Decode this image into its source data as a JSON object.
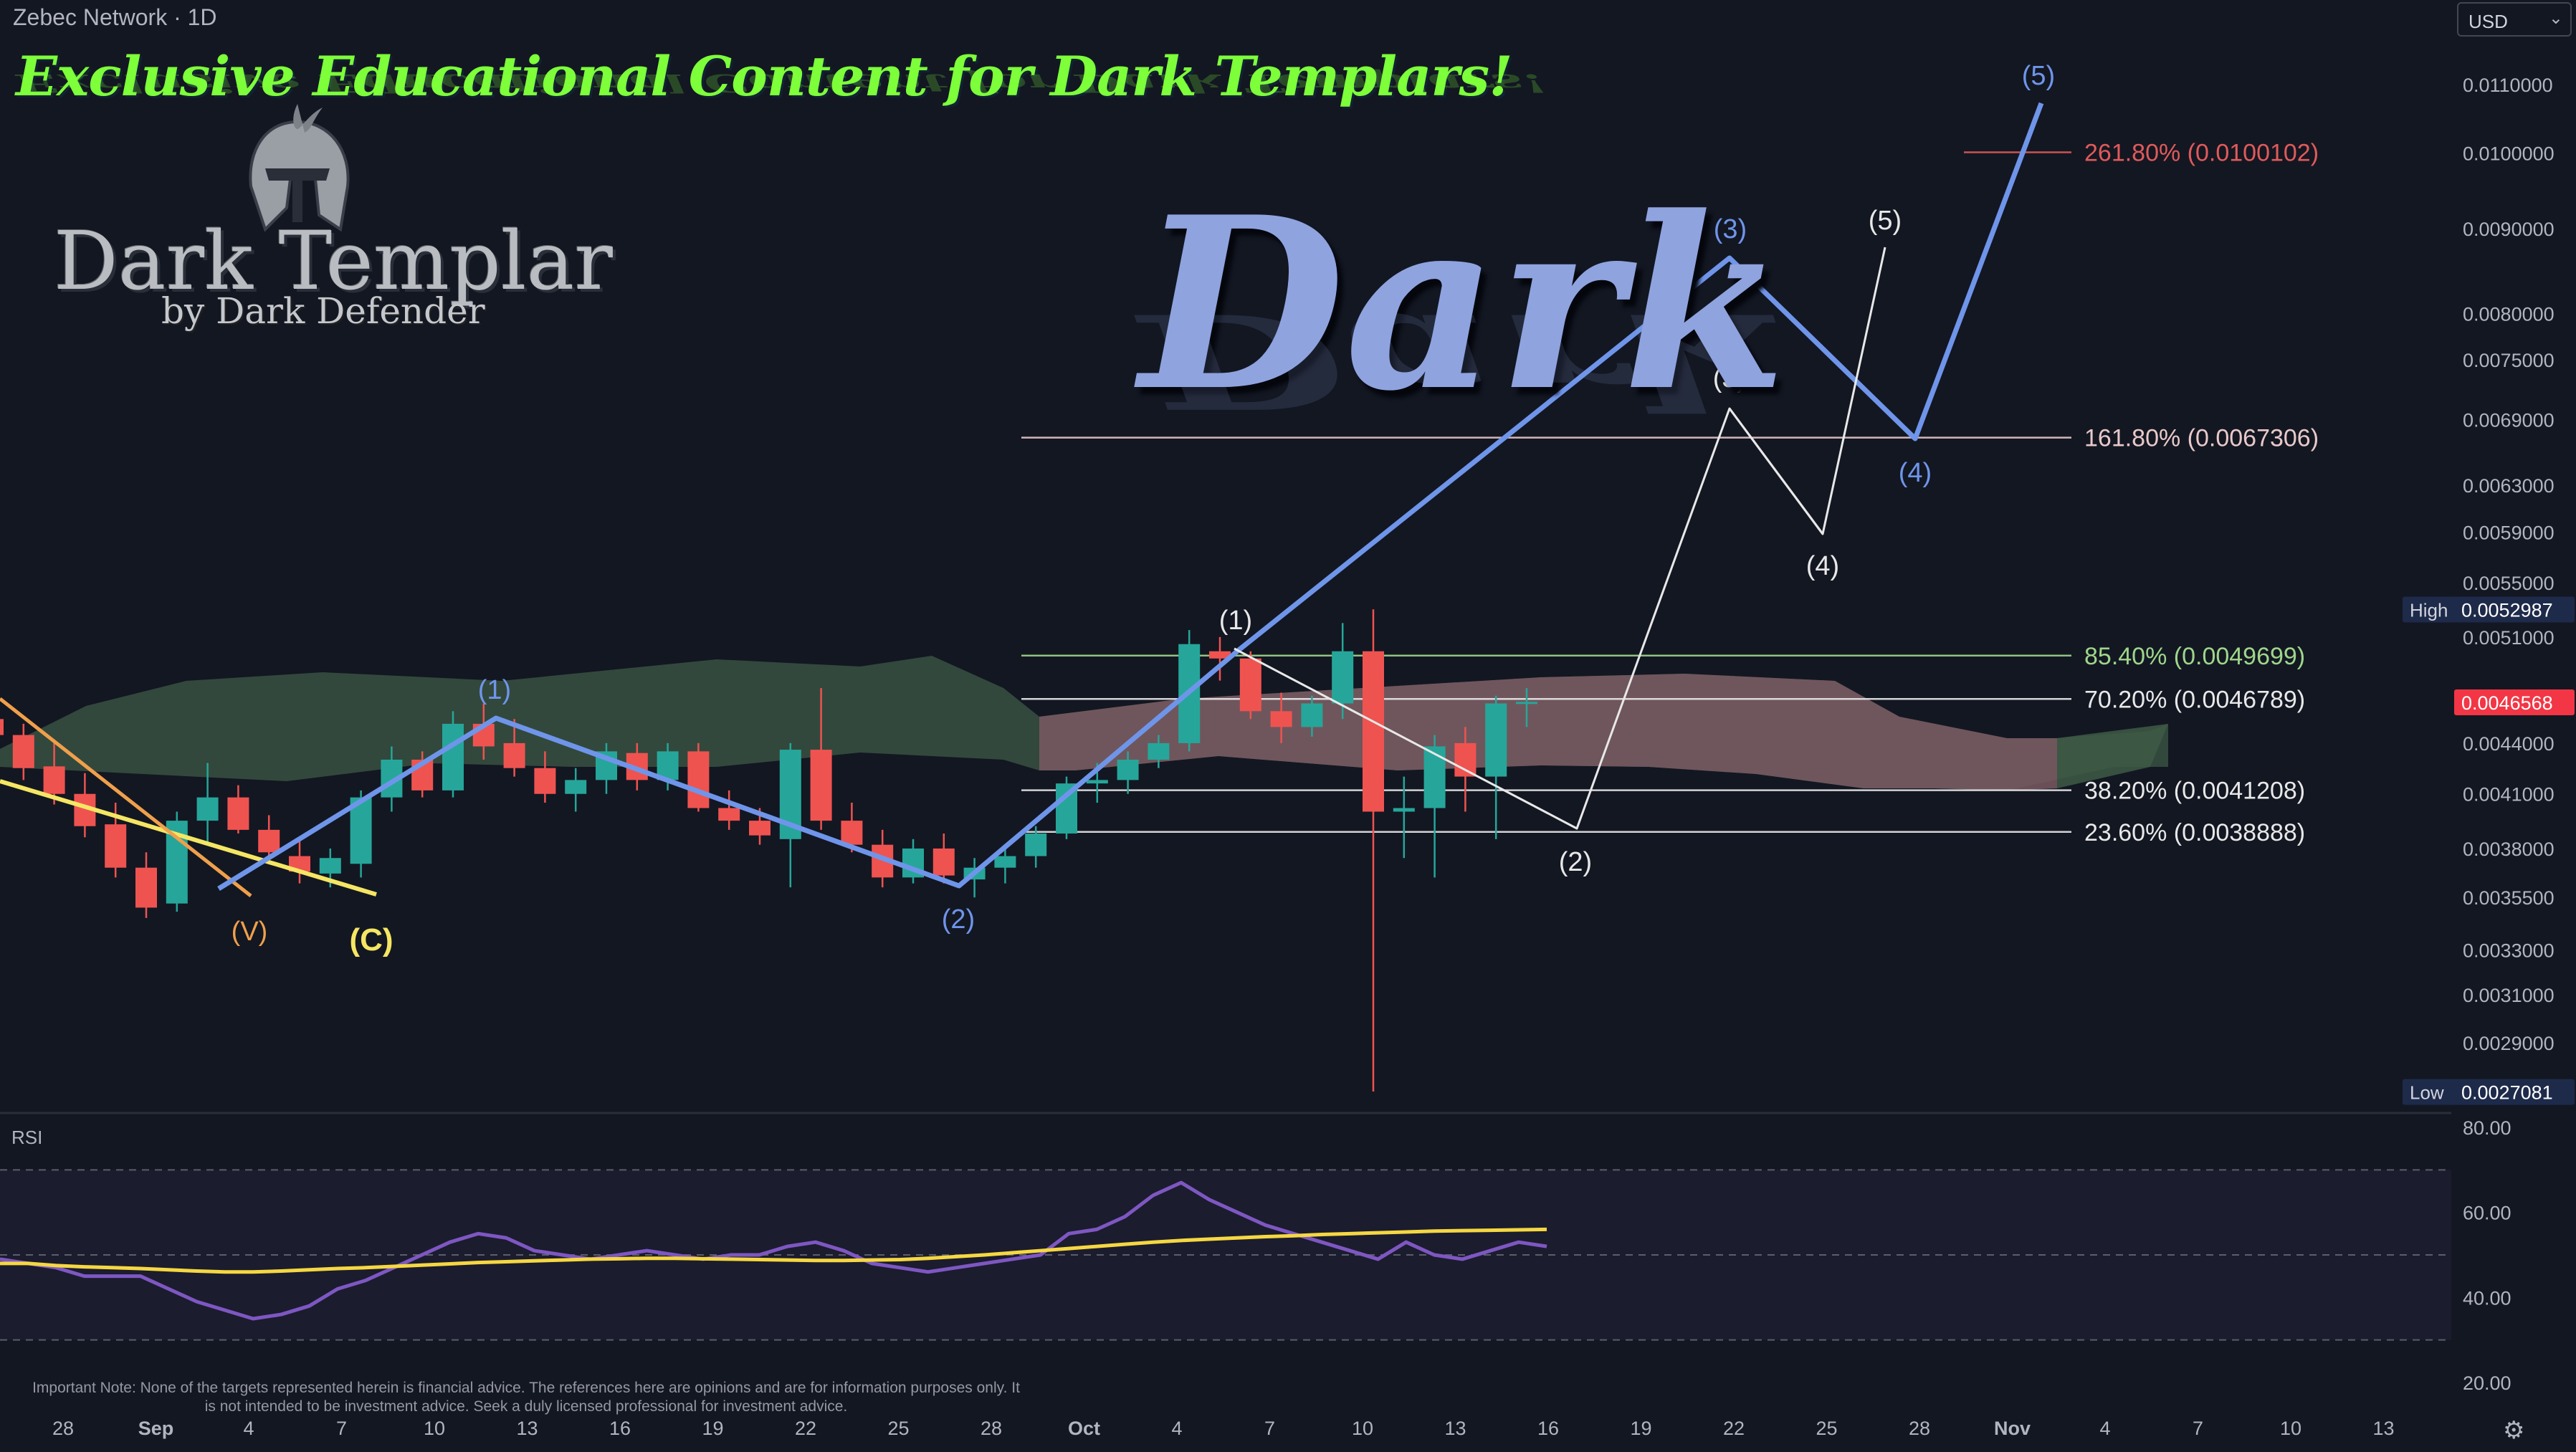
{
  "header": {
    "symbol_title": "Zebec Network · 1D",
    "currency": "USD"
  },
  "overlay": {
    "promo_text": "Exclusive Educational Content for Dark Templars!",
    "brand_name": "Dark Templar",
    "brand_sub": "by Dark Defender",
    "watermark": "Dark",
    "disclaimer": "Important Note: None of the targets represented herein is financial advice. The references here are opinions and are for information purposes only. It is not intended to be investment advice. Seek a duly licensed professional for investment advice."
  },
  "icons": {
    "settings": "gear-icon",
    "helmet": "helmet-icon",
    "chevron": "chevron-down-icon"
  },
  "colors": {
    "background": "#131722",
    "up": "#26a69a",
    "down": "#ef5350",
    "wave_blue": "#6f95ea",
    "wave_white": "#e8e8e8",
    "wave_yellow": "#f5e663",
    "rsi_line": "#7e57c2",
    "rsi_ma": "#f5d742",
    "cloud_green": "#3e5a45",
    "cloud_red": "#7a5962"
  },
  "chart_data": [
    {
      "type": "candlestick",
      "scale": "log",
      "ylim": [
        0.0027,
        0.0115
      ],
      "x_tick_labels": [
        "28",
        "Sep",
        "4",
        "7",
        "10",
        "13",
        "16",
        "19",
        "22",
        "25",
        "28",
        "Oct",
        "4",
        "7",
        "10",
        "13",
        "16",
        "19",
        "22",
        "25",
        "28",
        "Nov",
        "4",
        "7",
        "10",
        "13"
      ],
      "y_tick_labels": [
        "0.0110000",
        "0.0100000",
        "0.0090000",
        "0.0080000",
        "0.0075000",
        "0.0069000",
        "0.0063000",
        "0.0059000",
        "0.0055000",
        "0.0051000",
        "0.0044000",
        "0.0041000",
        "0.0038000",
        "0.0035500",
        "0.0033000",
        "0.0031000",
        "0.0029000"
      ],
      "price_badges": [
        {
          "label": "High",
          "value": "0.0052987"
        },
        {
          "label": "",
          "value": "0.0046568"
        },
        {
          "label": "Low",
          "value": "0.0027081"
        }
      ],
      "candles": [
        {
          "o": 0.00455,
          "h": 0.00465,
          "l": 0.0044,
          "c": 0.00445
        },
        {
          "o": 0.00445,
          "h": 0.00452,
          "l": 0.00418,
          "c": 0.00425
        },
        {
          "o": 0.00426,
          "h": 0.0044,
          "l": 0.00404,
          "c": 0.0041
        },
        {
          "o": 0.0041,
          "h": 0.00422,
          "l": 0.00386,
          "c": 0.00392
        },
        {
          "o": 0.00393,
          "h": 0.00405,
          "l": 0.00365,
          "c": 0.0037
        },
        {
          "o": 0.0037,
          "h": 0.00378,
          "l": 0.00345,
          "c": 0.0035
        },
        {
          "o": 0.00352,
          "h": 0.004,
          "l": 0.00348,
          "c": 0.00395
        },
        {
          "o": 0.00395,
          "h": 0.00428,
          "l": 0.00382,
          "c": 0.00408
        },
        {
          "o": 0.00408,
          "h": 0.00415,
          "l": 0.00388,
          "c": 0.0039
        },
        {
          "o": 0.0039,
          "h": 0.00398,
          "l": 0.00372,
          "c": 0.00378
        },
        {
          "o": 0.00376,
          "h": 0.00385,
          "l": 0.00362,
          "c": 0.00368
        },
        {
          "o": 0.00367,
          "h": 0.0038,
          "l": 0.0036,
          "c": 0.00375
        },
        {
          "o": 0.00372,
          "h": 0.00412,
          "l": 0.00365,
          "c": 0.00408
        },
        {
          "o": 0.00408,
          "h": 0.00438,
          "l": 0.004,
          "c": 0.0043
        },
        {
          "o": 0.0043,
          "h": 0.00435,
          "l": 0.00408,
          "c": 0.00412
        },
        {
          "o": 0.00412,
          "h": 0.0046,
          "l": 0.00408,
          "c": 0.00452
        },
        {
          "o": 0.00452,
          "h": 0.00465,
          "l": 0.0043,
          "c": 0.00438
        },
        {
          "o": 0.0044,
          "h": 0.00455,
          "l": 0.0042,
          "c": 0.00425
        },
        {
          "o": 0.00425,
          "h": 0.00435,
          "l": 0.00405,
          "c": 0.0041
        },
        {
          "o": 0.0041,
          "h": 0.00425,
          "l": 0.004,
          "c": 0.00418
        },
        {
          "o": 0.00418,
          "h": 0.0044,
          "l": 0.0041,
          "c": 0.00435
        },
        {
          "o": 0.00434,
          "h": 0.0044,
          "l": 0.00412,
          "c": 0.00418
        },
        {
          "o": 0.00418,
          "h": 0.0044,
          "l": 0.00412,
          "c": 0.00435
        },
        {
          "o": 0.00435,
          "h": 0.0044,
          "l": 0.004,
          "c": 0.00402
        },
        {
          "o": 0.00402,
          "h": 0.00412,
          "l": 0.0039,
          "c": 0.00395
        },
        {
          "o": 0.00395,
          "h": 0.00402,
          "l": 0.00382,
          "c": 0.00387
        },
        {
          "o": 0.00385,
          "h": 0.0044,
          "l": 0.0036,
          "c": 0.00436
        },
        {
          "o": 0.00436,
          "h": 0.00475,
          "l": 0.0039,
          "c": 0.00395
        },
        {
          "o": 0.00395,
          "h": 0.00405,
          "l": 0.00378,
          "c": 0.00382
        },
        {
          "o": 0.00382,
          "h": 0.0039,
          "l": 0.0036,
          "c": 0.00365
        },
        {
          "o": 0.00365,
          "h": 0.00385,
          "l": 0.00362,
          "c": 0.0038
        },
        {
          "o": 0.0038,
          "h": 0.00388,
          "l": 0.00362,
          "c": 0.00366
        },
        {
          "o": 0.00364,
          "h": 0.00375,
          "l": 0.00355,
          "c": 0.0037
        },
        {
          "o": 0.0037,
          "h": 0.0038,
          "l": 0.00362,
          "c": 0.00376
        },
        {
          "o": 0.00376,
          "h": 0.00392,
          "l": 0.0037,
          "c": 0.00388
        },
        {
          "o": 0.00388,
          "h": 0.0042,
          "l": 0.00385,
          "c": 0.00416
        },
        {
          "o": 0.00416,
          "h": 0.00428,
          "l": 0.00405,
          "c": 0.00418
        },
        {
          "o": 0.00418,
          "h": 0.00435,
          "l": 0.0041,
          "c": 0.0043
        },
        {
          "o": 0.0043,
          "h": 0.00445,
          "l": 0.00425,
          "c": 0.0044
        },
        {
          "o": 0.0044,
          "h": 0.00515,
          "l": 0.00435,
          "c": 0.00505
        },
        {
          "o": 0.005,
          "h": 0.0051,
          "l": 0.0048,
          "c": 0.00495
        },
        {
          "o": 0.00495,
          "h": 0.005,
          "l": 0.00455,
          "c": 0.0046
        },
        {
          "o": 0.0046,
          "h": 0.00472,
          "l": 0.0044,
          "c": 0.0045
        },
        {
          "o": 0.0045,
          "h": 0.0047,
          "l": 0.00444,
          "c": 0.00465
        },
        {
          "o": 0.00465,
          "h": 0.0052,
          "l": 0.00455,
          "c": 0.005
        },
        {
          "o": 0.005,
          "h": 0.0053,
          "l": 0.00271,
          "c": 0.004
        },
        {
          "o": 0.004,
          "h": 0.0042,
          "l": 0.00375,
          "c": 0.00402
        },
        {
          "o": 0.00402,
          "h": 0.00445,
          "l": 0.00365,
          "c": 0.00438
        },
        {
          "o": 0.0044,
          "h": 0.0045,
          "l": 0.004,
          "c": 0.0042
        },
        {
          "o": 0.0042,
          "h": 0.0047,
          "l": 0.00385,
          "c": 0.00465
        },
        {
          "o": 0.00465,
          "h": 0.00475,
          "l": 0.0045,
          "c": 0.00466
        }
      ],
      "fib_levels": [
        {
          "label": "261.80% (0.0100102)",
          "price": 0.0100102,
          "color": "#e05a5a"
        },
        {
          "label": "161.80% (0.0067306)",
          "price": 0.0067306,
          "color": "#e8c9c9"
        },
        {
          "label": "85.40% (0.0049699)",
          "price": 0.0049699,
          "color": "#9fd68a"
        },
        {
          "label": "70.20% (0.0046789)",
          "price": 0.0046789,
          "color": "#e8e8e8"
        },
        {
          "label": "38.20% (0.0041208)",
          "price": 0.0041208,
          "color": "#e8e8e8"
        },
        {
          "label": "23.60% (0.0038888)",
          "price": 0.0038888,
          "color": "#e8e8e8"
        }
      ],
      "waves": {
        "blue": [
          "(1)",
          "(2)",
          "(3)",
          "(4)",
          "(5)"
        ],
        "white": [
          "(1)",
          "(2)",
          "(3)",
          "(4)",
          "(5)"
        ],
        "white_alt": [
          "(3)",
          "(4)"
        ],
        "orange": [
          "(V)"
        ],
        "yellow": [
          "(C)"
        ]
      }
    },
    {
      "type": "line",
      "title": "RSI",
      "ylim": [
        20,
        80
      ],
      "y_tick_labels": [
        "80.00",
        "60.00",
        "40.00",
        "20.00"
      ],
      "series": [
        {
          "values": [
            49,
            48,
            47,
            45,
            45,
            45,
            42,
            39,
            37,
            35,
            36,
            38,
            42,
            44,
            47,
            50,
            53,
            55,
            54,
            51,
            50,
            49,
            50,
            51,
            50,
            49,
            50,
            50,
            52,
            53,
            51,
            48,
            47,
            46,
            47,
            48,
            49,
            50,
            55,
            56,
            59,
            64,
            67,
            63,
            60,
            57,
            55,
            53,
            51,
            49,
            53,
            50,
            49,
            51,
            53,
            52
          ]
        },
        {
          "values": [
            48,
            48,
            47.5,
            47.2,
            47,
            46.8,
            46.5,
            46.2,
            46,
            46,
            46.2,
            46.5,
            46.8,
            47,
            47.3,
            47.6,
            47.9,
            48.2,
            48.4,
            48.6,
            48.8,
            49,
            49.1,
            49.2,
            49.2,
            49.1,
            49,
            48.9,
            48.8,
            48.7,
            48.7,
            48.8,
            48.9,
            49.2,
            49.6,
            50,
            50.5,
            51,
            51.5,
            52,
            52.5,
            53,
            53.4,
            53.7,
            54,
            54.3,
            54.5,
            54.8,
            55,
            55.2,
            55.4,
            55.6,
            55.7,
            55.8,
            55.9,
            56
          ]
        }
      ]
    }
  ]
}
